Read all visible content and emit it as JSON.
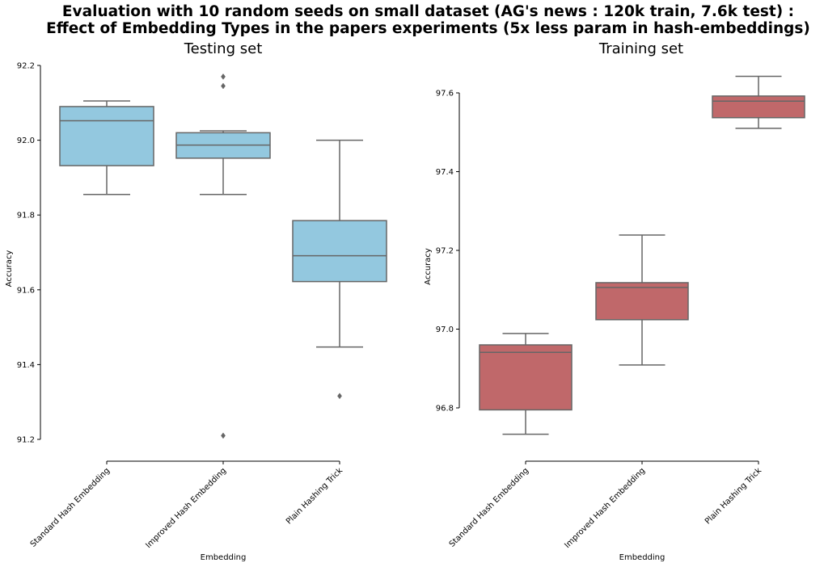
{
  "suptitle": {
    "line1": "Evaluation with 10 random seeds on small dataset (AG's news : 120k train, 7.6k test) :",
    "line2": "Effect of Embedding Types in the papers experiments (5x less param in hash-embeddings)"
  },
  "chart_data": [
    {
      "type": "box",
      "title": "Testing set",
      "xlabel": "Embedding",
      "ylabel": "Accuracy",
      "categories": [
        "Standard Hash Embedding",
        "Improved Hash Embedding",
        "Plain Hashing Trick"
      ],
      "ylim": [
        91.2,
        92.2
      ],
      "yticks": [
        "91.2",
        "91.4",
        "91.6",
        "91.8",
        "92.0",
        "92.2"
      ],
      "color": "#93c8df",
      "boxes": [
        {
          "whisker_low": 91.855,
          "q1": 91.932,
          "median": 92.052,
          "q3": 92.09,
          "whisker_high": 92.105,
          "outliers": []
        },
        {
          "whisker_low": 91.855,
          "q1": 91.952,
          "median": 91.987,
          "q3": 92.02,
          "whisker_high": 92.025,
          "outliers": [
            92.145,
            92.17,
            91.21
          ]
        },
        {
          "whisker_low": 91.447,
          "q1": 91.622,
          "median": 91.691,
          "q3": 91.785,
          "whisker_high": 92.0,
          "outliers": [
            91.316
          ]
        }
      ]
    },
    {
      "type": "box",
      "title": "Training set",
      "xlabel": "Embedding",
      "ylabel": "Accuracy",
      "categories": [
        "Standard Hash Embedding",
        "Improved Hash Embedding",
        "Plain Hashing Trick"
      ],
      "ylim": [
        96.8,
        97.6
      ],
      "yticks": [
        "96.8",
        "97.0",
        "97.2",
        "97.4",
        "97.6"
      ],
      "color": "#c0686a",
      "boxes": [
        {
          "whisker_low": 96.733,
          "q1": 96.795,
          "median": 96.941,
          "q3": 96.96,
          "whisker_high": 96.989,
          "outliers": []
        },
        {
          "whisker_low": 96.909,
          "q1": 97.024,
          "median": 97.106,
          "q3": 97.118,
          "whisker_high": 97.239,
          "outliers": []
        },
        {
          "whisker_low": 97.51,
          "q1": 97.537,
          "median": 97.579,
          "q3": 97.592,
          "whisker_high": 97.642,
          "outliers": []
        }
      ]
    }
  ]
}
